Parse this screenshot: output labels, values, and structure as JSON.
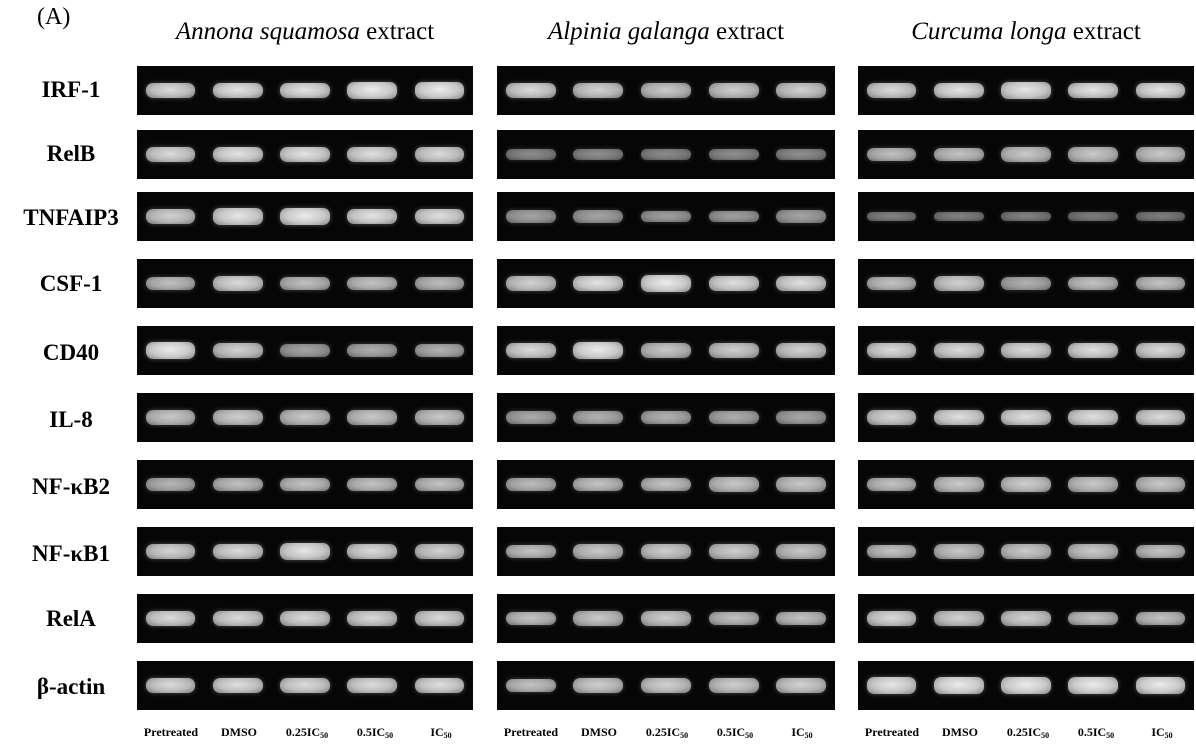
{
  "figure": {
    "panel_label": "(A)",
    "panels": [
      {
        "species": "Annona squamosa",
        "suffix": " extract"
      },
      {
        "species": "Alpinia galanga",
        "suffix": " extract"
      },
      {
        "species": "Curcuma longa",
        "suffix": " extract"
      }
    ],
    "genes": [
      "IRF-1",
      "RelB",
      "TNFAIP3",
      "CSF-1",
      "CD40",
      "IL-8",
      "NF-κB2",
      "NF-κB1",
      "RelA",
      "β-actin"
    ],
    "lanes": [
      {
        "base": "Pretreated",
        "sub": ""
      },
      {
        "base": "DMSO",
        "sub": ""
      },
      {
        "base": "0.25IC",
        "sub": "50"
      },
      {
        "base": "0.5IC",
        "sub": "50"
      },
      {
        "base": "IC",
        "sub": "50"
      }
    ],
    "band_intensity": [
      [
        [
          0.85,
          0.9,
          0.9,
          0.95,
          0.95
        ],
        [
          0.85,
          0.9,
          0.9,
          0.88,
          0.85
        ],
        [
          0.8,
          0.92,
          0.95,
          0.9,
          0.88
        ],
        [
          0.7,
          0.85,
          0.7,
          0.72,
          0.68
        ],
        [
          0.95,
          0.8,
          0.55,
          0.6,
          0.62
        ],
        [
          0.75,
          0.78,
          0.75,
          0.74,
          0.74
        ],
        [
          0.65,
          0.7,
          0.72,
          0.72,
          0.72
        ],
        [
          0.82,
          0.85,
          0.92,
          0.85,
          0.8
        ],
        [
          0.85,
          0.85,
          0.85,
          0.84,
          0.84
        ],
        [
          0.85,
          0.88,
          0.86,
          0.86,
          0.88
        ]
      ],
      [
        [
          0.85,
          0.8,
          0.75,
          0.78,
          0.8
        ],
        [
          0.4,
          0.42,
          0.4,
          0.42,
          0.42
        ],
        [
          0.55,
          0.55,
          0.52,
          0.52,
          0.55
        ],
        [
          0.8,
          0.9,
          0.95,
          0.88,
          0.88
        ],
        [
          0.85,
          0.95,
          0.75,
          0.78,
          0.8
        ],
        [
          0.58,
          0.62,
          0.62,
          0.6,
          0.56
        ],
        [
          0.68,
          0.72,
          0.72,
          0.74,
          0.74
        ],
        [
          0.72,
          0.75,
          0.78,
          0.78,
          0.74
        ],
        [
          0.72,
          0.75,
          0.78,
          0.7,
          0.72
        ],
        [
          0.72,
          0.78,
          0.8,
          0.78,
          0.8
        ]
      ],
      [
        [
          0.85,
          0.9,
          0.92,
          0.9,
          0.9
        ],
        [
          0.7,
          0.72,
          0.75,
          0.75,
          0.75
        ],
        [
          0.35,
          0.35,
          0.35,
          0.32,
          0.32
        ],
        [
          0.72,
          0.8,
          0.62,
          0.72,
          0.72
        ],
        [
          0.85,
          0.85,
          0.85,
          0.88,
          0.85
        ],
        [
          0.82,
          0.88,
          0.88,
          0.88,
          0.85
        ],
        [
          0.72,
          0.76,
          0.78,
          0.75,
          0.74
        ],
        [
          0.72,
          0.74,
          0.76,
          0.76,
          0.72
        ],
        [
          0.85,
          0.8,
          0.8,
          0.72,
          0.72
        ],
        [
          0.92,
          0.95,
          0.95,
          0.95,
          0.95
        ]
      ]
    ]
  }
}
